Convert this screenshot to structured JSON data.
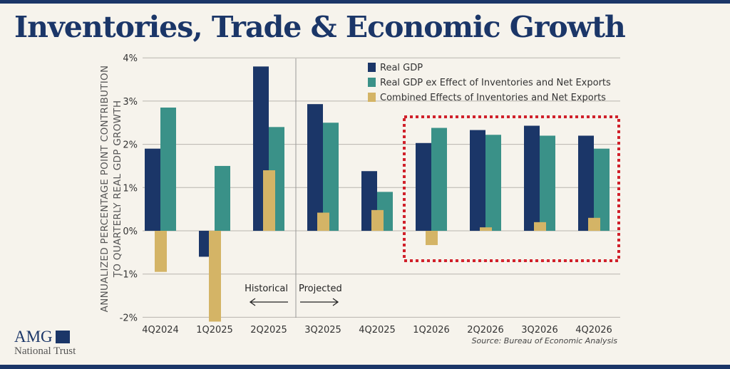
{
  "title": "Inventories, Trade & Economic Growth",
  "source": "Source: Bureau of Economic Analysis",
  "logo": {
    "line1": "AMG",
    "line2": "National Trust"
  },
  "colors": {
    "navy": "#1b3668",
    "teal": "#3a9188",
    "gold": "#d4b466",
    "highlight": "#d0202a"
  },
  "chart_data": {
    "type": "bar",
    "title": "",
    "ylabel": [
      "ANNUALIZED PERCENTAGE POINT CONTRIBUTION",
      "TO QUARTERLY REAL GDP GROWTH"
    ],
    "xlabel": "",
    "ylim": [
      -2,
      4
    ],
    "yticks": [
      "-2%",
      "-1%",
      "0%",
      "1%",
      "2%",
      "3%",
      "4%"
    ],
    "grid": true,
    "legend_position": "top-right",
    "categories": [
      "4Q2024",
      "1Q2025",
      "2Q2025",
      "3Q2025",
      "4Q2025",
      "1Q2026",
      "2Q2026",
      "3Q2026",
      "4Q2026"
    ],
    "series": [
      {
        "name": "Real GDP",
        "color": "#1b3668",
        "values": [
          1.9,
          -0.6,
          3.8,
          2.93,
          1.38,
          2.03,
          2.33,
          2.43,
          2.2
        ]
      },
      {
        "name": "Real GDP ex Effect of Inventories and Net Exports",
        "color": "#3a9188",
        "values": [
          2.85,
          1.5,
          2.4,
          2.5,
          0.9,
          2.38,
          2.22,
          2.2,
          1.9
        ]
      },
      {
        "name": "Combined Effects of Inventories and Net Exports",
        "color": "#d4b466",
        "values": [
          -0.95,
          -2.1,
          1.4,
          0.42,
          0.48,
          -0.33,
          0.08,
          0.2,
          0.3
        ]
      }
    ],
    "annotations": {
      "historical": "Historical",
      "projected": "Projected",
      "highlight_box_categories": [
        "1Q2026",
        "2Q2026",
        "3Q2026",
        "4Q2026"
      ]
    }
  }
}
